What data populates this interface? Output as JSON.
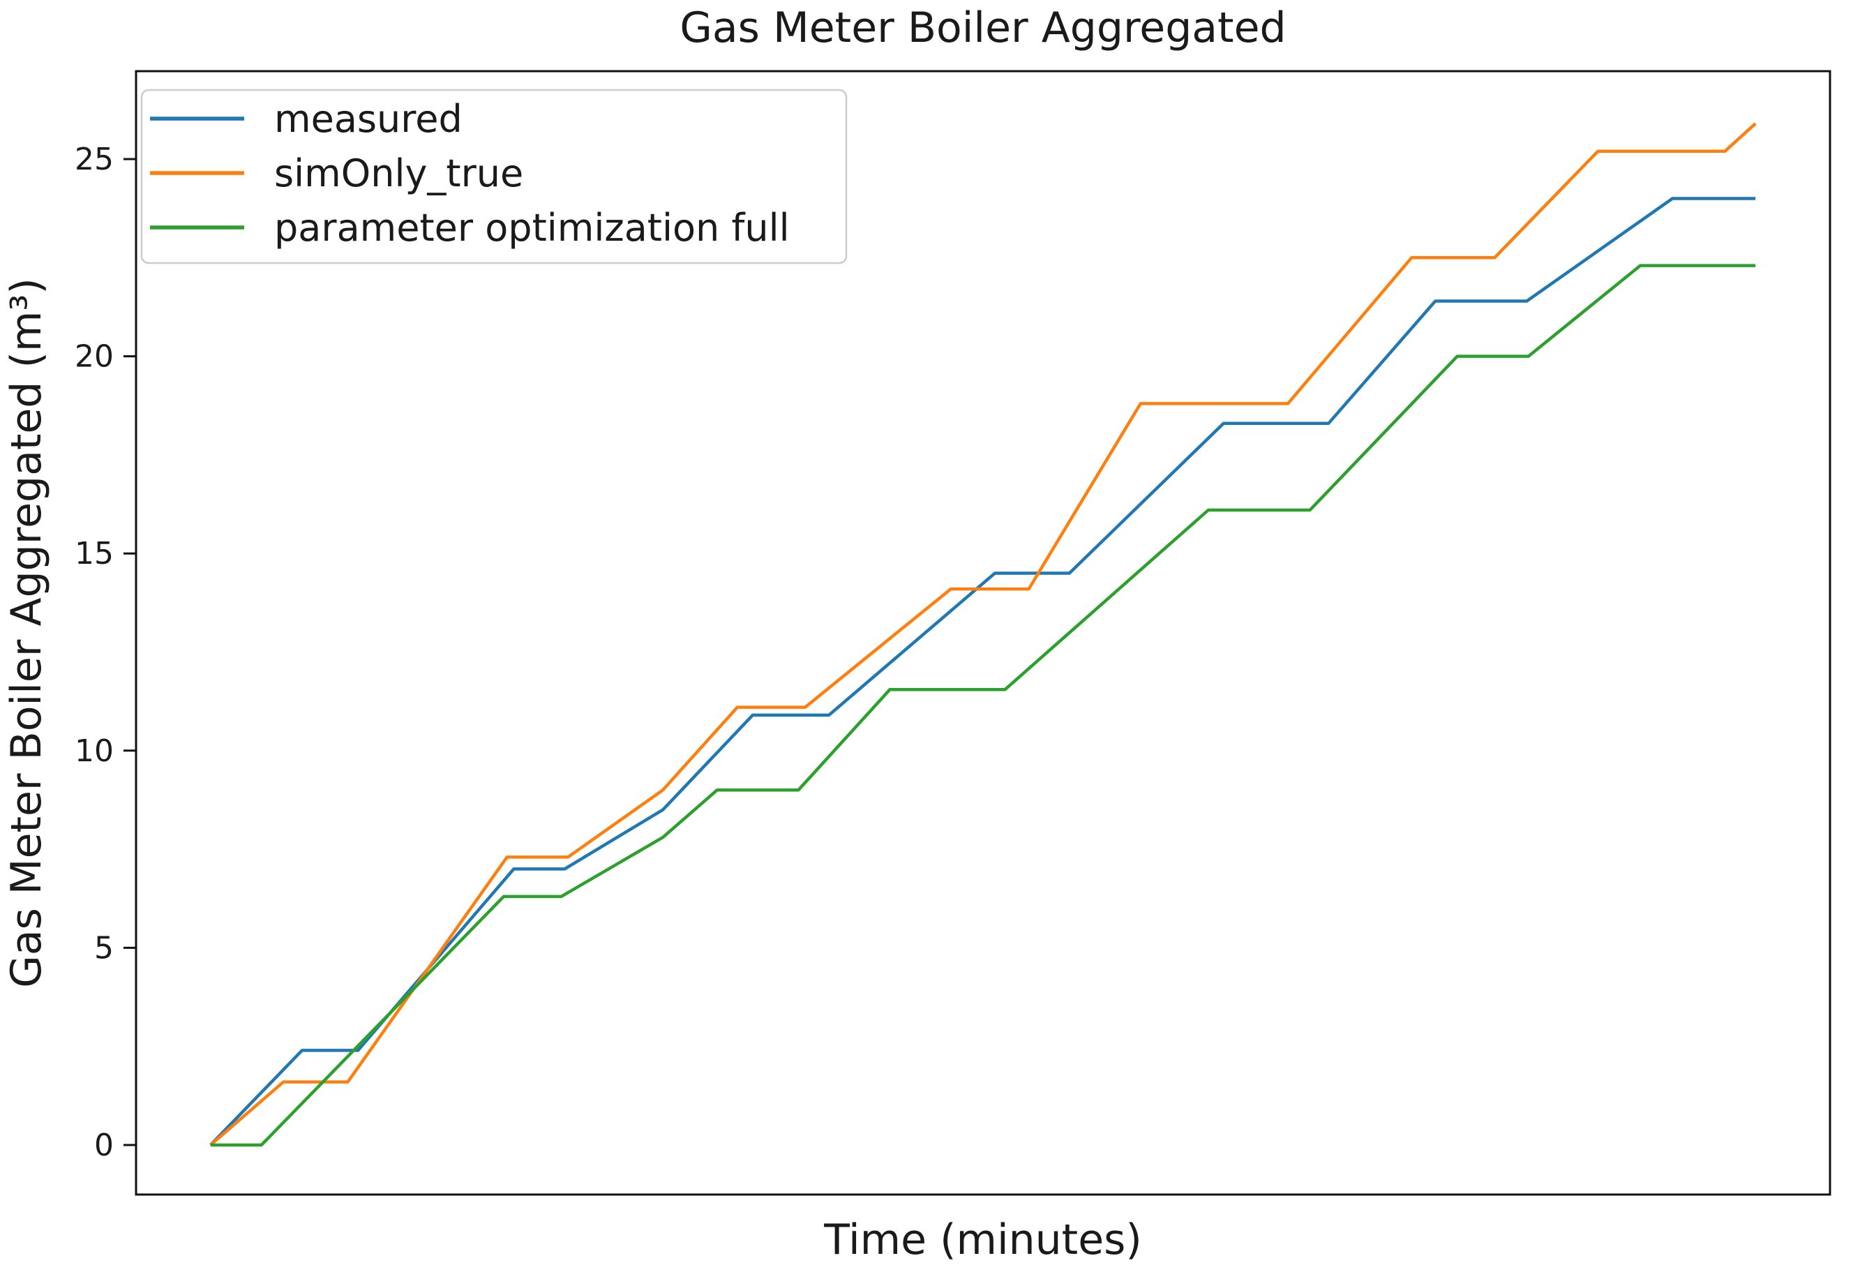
{
  "chart_data": {
    "type": "line",
    "title": "Gas Meter Boiler Aggregated",
    "xlabel": "Time (minutes)",
    "ylabel": "Gas Meter Boiler Aggregated (m³)",
    "y_ticks": [
      0,
      5,
      10,
      15,
      20,
      25
    ],
    "ylim": [
      -1.3,
      27.2
    ],
    "xlim": [
      0,
      100
    ],
    "x_units": "relative position 0-100 (no x tick labels shown in figure)",
    "grid": false,
    "legend_position": "upper left",
    "series": [
      {
        "name": "measured",
        "color": "#1f77b4",
        "points": [
          [
            4.4,
            0
          ],
          [
            9.8,
            2.4
          ],
          [
            13.1,
            2.4
          ],
          [
            22.3,
            7.0
          ],
          [
            25.3,
            7.0
          ],
          [
            31.1,
            8.5
          ],
          [
            36.4,
            10.9
          ],
          [
            40.9,
            10.9
          ],
          [
            50.7,
            14.5
          ],
          [
            55.1,
            14.5
          ],
          [
            64.2,
            18.3
          ],
          [
            70.4,
            18.3
          ],
          [
            76.7,
            21.4
          ],
          [
            82.1,
            21.4
          ],
          [
            90.7,
            24.0
          ],
          [
            95.6,
            24.0
          ]
        ]
      },
      {
        "name": "simOnly_true",
        "color": "#ff7f0e",
        "points": [
          [
            4.4,
            0
          ],
          [
            8.7,
            1.6
          ],
          [
            12.5,
            1.6
          ],
          [
            21.9,
            7.3
          ],
          [
            25.5,
            7.3
          ],
          [
            31.1,
            9.0
          ],
          [
            35.5,
            11.1
          ],
          [
            39.5,
            11.1
          ],
          [
            48.1,
            14.1
          ],
          [
            52.7,
            14.1
          ],
          [
            59.3,
            18.8
          ],
          [
            68.0,
            18.8
          ],
          [
            75.3,
            22.5
          ],
          [
            80.2,
            22.5
          ],
          [
            86.3,
            25.2
          ],
          [
            93.8,
            25.2
          ],
          [
            95.6,
            25.9
          ]
        ]
      },
      {
        "name": "parameter optimization full",
        "color": "#2ca02c",
        "points": [
          [
            4.4,
            0
          ],
          [
            7.4,
            0
          ],
          [
            21.7,
            6.3
          ],
          [
            25.1,
            6.3
          ],
          [
            31.1,
            7.8
          ],
          [
            34.3,
            9.0
          ],
          [
            39.1,
            9.0
          ],
          [
            44.5,
            11.55
          ],
          [
            51.3,
            11.55
          ],
          [
            63.3,
            16.1
          ],
          [
            69.3,
            16.1
          ],
          [
            78.0,
            20.0
          ],
          [
            82.2,
            20.0
          ],
          [
            88.8,
            22.3
          ],
          [
            95.6,
            22.3
          ]
        ]
      }
    ]
  }
}
